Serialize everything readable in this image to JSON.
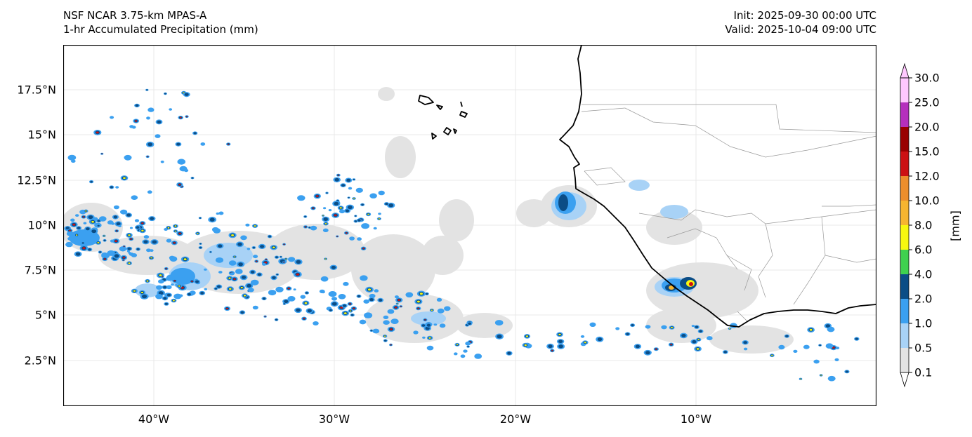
{
  "header": {
    "title_line1": "NSF NCAR 3.75-km MPAS-A",
    "title_line2": "1-hr Accumulated Precipitation (mm)",
    "init": "Init: 2025-09-30 00:00 UTC",
    "valid": "Valid: 2025-10-04 09:00 UTC"
  },
  "map": {
    "lon_range": [
      -45,
      0
    ],
    "lat_range": [
      0,
      20
    ],
    "y_ticks": [
      "17.5°N",
      "15°N",
      "12.5°N",
      "10°N",
      "7.5°N",
      "5°N",
      "2.5°N"
    ],
    "x_ticks": [
      "40°W",
      "30°W",
      "20°W",
      "10°W"
    ],
    "coastline_color": "#000000",
    "border_color": "#999999",
    "gridlines": true
  },
  "colorbar": {
    "unit_label": "[mm]",
    "levels": [
      "0.1",
      "0.5",
      "1.0",
      "2.0",
      "4.0",
      "6.0",
      "8.0",
      "10.0",
      "12.0",
      "15.0",
      "20.0",
      "25.0",
      "30.0"
    ],
    "colors": [
      "#e3e3e3",
      "#a8d2f6",
      "#3ba0f0",
      "#0b4d86",
      "#3fd14f",
      "#f7f70f",
      "#f6b530",
      "#ec8e2c",
      "#cc1113",
      "#990000",
      "#b52fbd",
      "#ffc8ff"
    ],
    "extend": "both"
  }
}
